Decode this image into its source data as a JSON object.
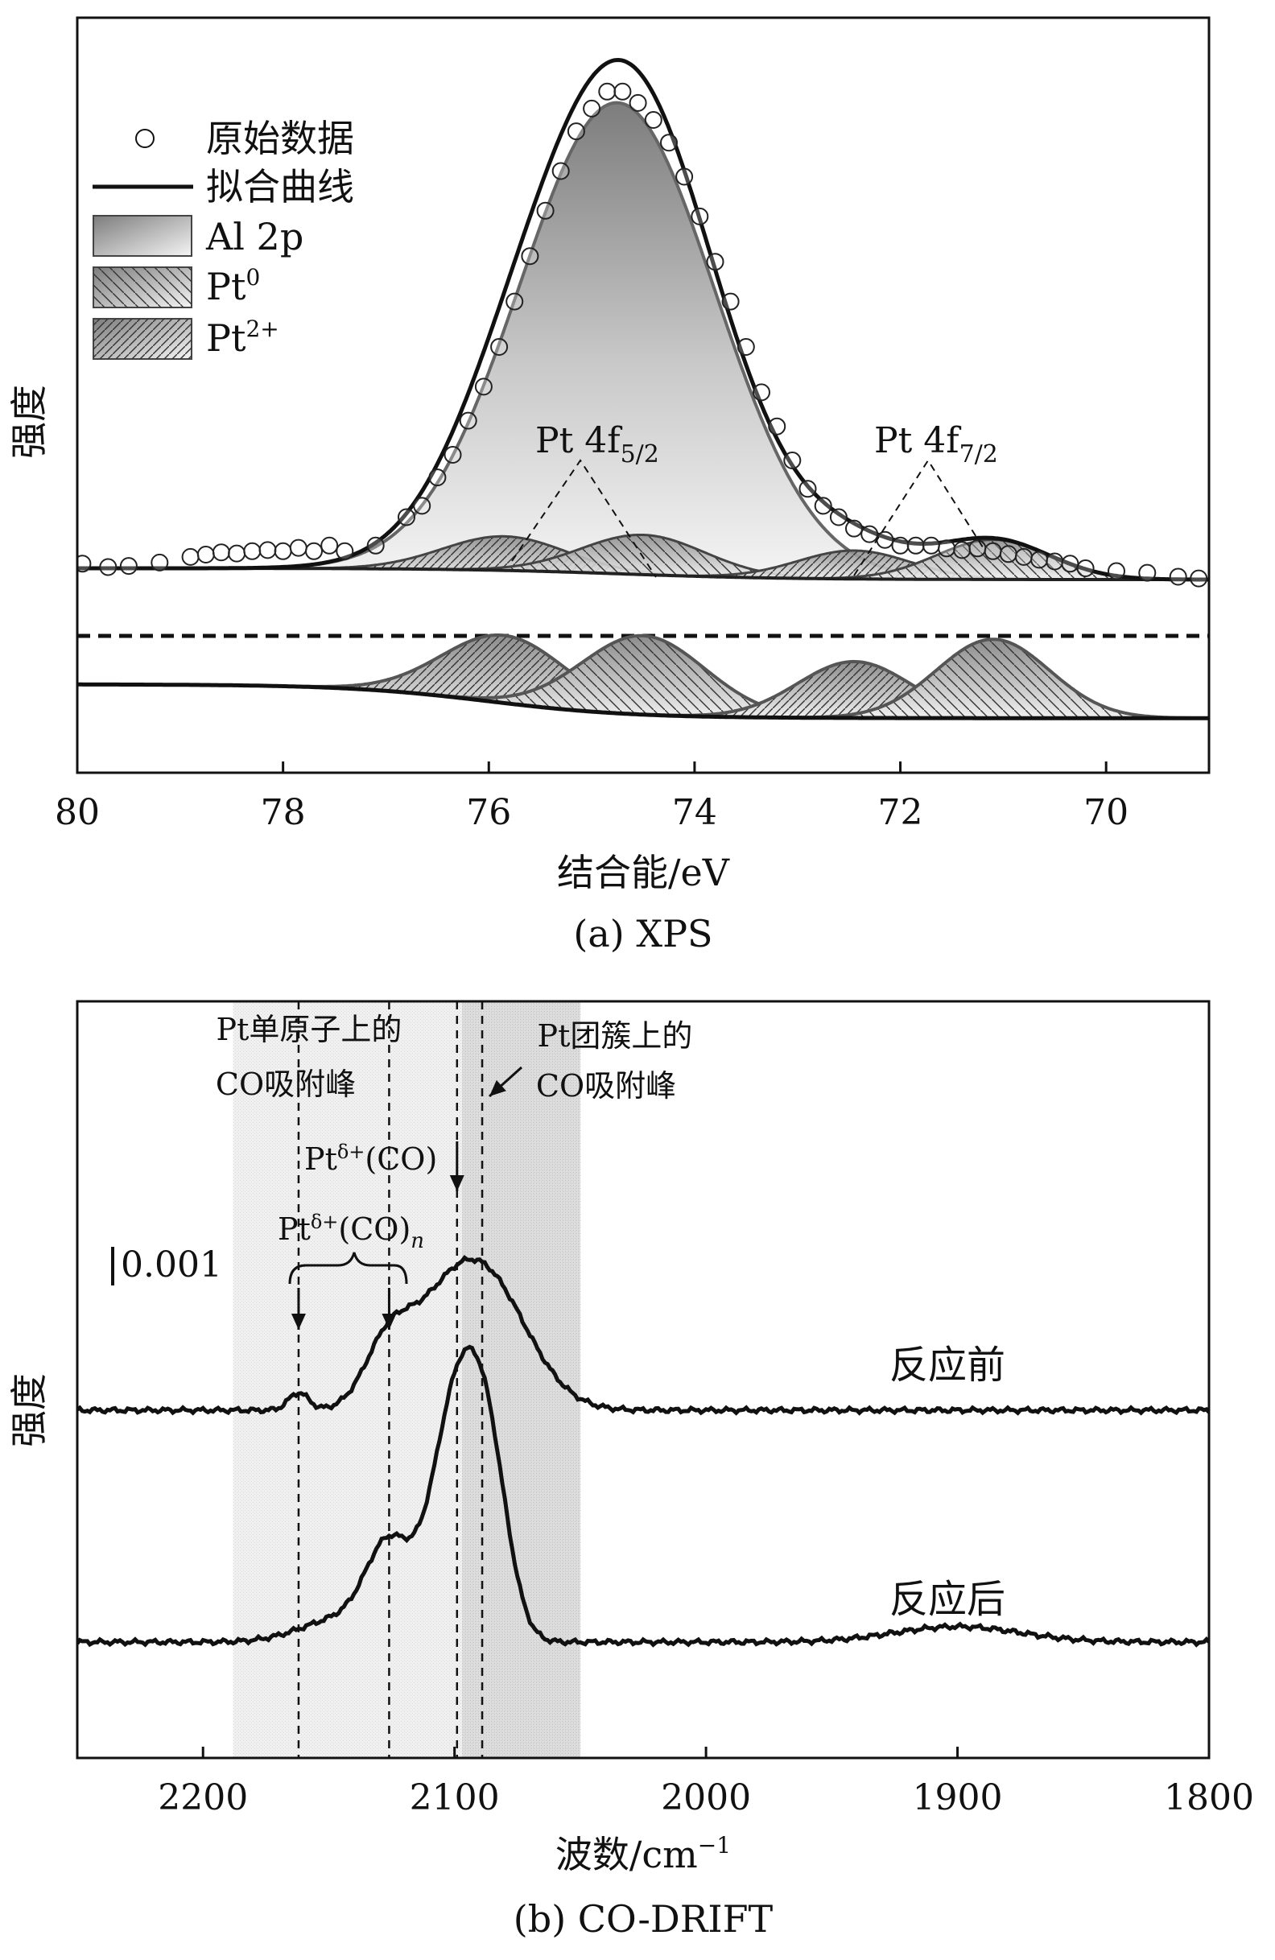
{
  "chart_data": [
    {
      "id": "a",
      "type": "line",
      "title": "(a) XPS",
      "xlabel": "结合能/eV",
      "ylabel": "强度",
      "xlim": [
        80,
        69
      ],
      "x_reversed": true,
      "xticks": [
        80,
        78,
        76,
        74,
        72,
        70
      ],
      "legend": {
        "placement": "top-left",
        "items": [
          {
            "key": "raw",
            "label": "原始数据",
            "marker": "open-circle"
          },
          {
            "key": "fit",
            "label": "拟合曲线",
            "marker": "line"
          },
          {
            "key": "al2p",
            "label": "Al 2p",
            "marker": "gradient-box"
          },
          {
            "key": "pt0",
            "label": "Pt",
            "sup": "0",
            "marker": "hatched-box"
          },
          {
            "key": "pt2",
            "label": "Pt",
            "sup": "2+",
            "marker": "hatched-box-dense"
          }
        ]
      },
      "annotations": [
        {
          "base": "Pt 4f",
          "sub": "5/2",
          "x_eV": 75.2
        },
        {
          "base": "Pt 4f",
          "sub": "7/2",
          "x_eV": 71.7
        }
      ],
      "components": {
        "al2p": {
          "center_eV": 74.75,
          "height": 0.83,
          "sigma_eV": 0.95
        },
        "pt0_5_2": {
          "center_eV": 74.5,
          "height": 0.07,
          "sigma_eV": 0.6
        },
        "pt0_7_2": {
          "center_eV": 71.1,
          "height": 0.07,
          "sigma_eV": 0.55
        },
        "pt2_5_2": {
          "center_eV": 75.85,
          "height": 0.06,
          "sigma_eV": 0.6
        },
        "pt2_7_2": {
          "center_eV": 72.45,
          "height": 0.05,
          "sigma_eV": 0.55
        },
        "baseline": {
          "left_value": 0.01,
          "right_value": -0.01,
          "step_center_eV": 74.7
        }
      },
      "raw_data_eV": [
        79.95,
        79.7,
        79.5,
        79.2,
        78.9,
        78.75,
        78.6,
        78.45,
        78.3,
        78.15,
        78.0,
        77.85,
        77.7,
        77.55,
        77.4,
        77.1,
        76.8,
        76.65,
        76.5,
        76.35,
        76.2,
        76.05,
        75.9,
        75.75,
        75.6,
        75.45,
        75.3,
        75.15,
        75.0,
        74.85,
        74.7,
        74.55,
        74.4,
        74.25,
        74.1,
        73.95,
        73.8,
        73.65,
        73.5,
        73.35,
        73.2,
        73.05,
        72.9,
        72.75,
        72.6,
        72.45,
        72.3,
        72.15,
        72.0,
        71.85,
        71.7,
        71.55,
        71.4,
        71.25,
        71.1,
        70.95,
        70.8,
        70.65,
        70.5,
        70.35,
        70.2,
        69.9,
        69.6,
        69.3,
        69.1
      ],
      "raw_data_intensity": [
        0.018,
        0.012,
        0.014,
        0.02,
        0.03,
        0.034,
        0.038,
        0.036,
        0.04,
        0.042,
        0.04,
        0.046,
        0.04,
        0.05,
        0.04,
        0.05,
        0.1,
        0.12,
        0.17,
        0.21,
        0.27,
        0.33,
        0.4,
        0.48,
        0.56,
        0.64,
        0.71,
        0.78,
        0.82,
        0.85,
        0.85,
        0.83,
        0.8,
        0.76,
        0.7,
        0.63,
        0.55,
        0.48,
        0.4,
        0.32,
        0.26,
        0.2,
        0.15,
        0.12,
        0.1,
        0.08,
        0.07,
        0.06,
        0.05,
        0.05,
        0.05,
        0.045,
        0.042,
        0.045,
        0.04,
        0.035,
        0.03,
        0.025,
        0.022,
        0.018,
        0.01,
        0.005,
        0.002,
        -0.005,
        -0.008
      ]
    },
    {
      "id": "b",
      "type": "line",
      "title": "(b) CO-DRIFT",
      "xlabel": "波数/cm",
      "xlabel_sup": "−1",
      "ylabel": "强度",
      "xlim": [
        2250,
        1800
      ],
      "x_reversed": true,
      "xticks": [
        2200,
        2100,
        2000,
        1900,
        1800
      ],
      "scale_bar": "0.001",
      "shaded_regions": [
        {
          "from": 2188,
          "to": 2097,
          "label": "Pt单原子上的CO吸附峰"
        },
        {
          "from": 2097,
          "to": 2050,
          "label": "Pt团簇上的CO吸附峰"
        }
      ],
      "vlines": [
        2162,
        2126,
        2099,
        2089
      ],
      "region_labels": [
        {
          "lines": [
            "Pt单原子上的",
            "CO吸附峰"
          ]
        },
        {
          "lines": [
            "Pt团簇上的",
            "CO吸附峰"
          ]
        }
      ],
      "peak_labels": [
        {
          "base": "Pt",
          "sup": "δ+",
          "suffix": "(CO)",
          "points_to": [
            2099
          ]
        },
        {
          "base": "Pt",
          "sup": "δ+",
          "suffix": "(CO)",
          "italic_sub": "n",
          "points_to": [
            2162,
            2126
          ]
        }
      ],
      "series": [
        {
          "name": "反应前",
          "baseline": 0,
          "peaks": [
            {
              "center": 2162,
              "height": 0.00045,
              "width": 4
            },
            {
              "center": 2127,
              "height": 0.0013,
              "width": 9
            },
            {
              "center": 2090,
              "height": 0.0036,
              "width": 18
            },
            {
              "center": 2112,
              "height": 0.0009,
              "width": 14
            }
          ]
        },
        {
          "name": "反应后",
          "baseline": 0,
          "peaks": [
            {
              "center": 2126,
              "height": 0.0023,
              "width": 9
            },
            {
              "center": 2099,
              "height": 0.0062,
              "width": 10
            },
            {
              "center": 2086,
              "height": 0.0035,
              "width": 8
            },
            {
              "center": 2145,
              "height": 0.0006,
              "width": 16
            },
            {
              "center": 1900,
              "height": 0.0004,
              "width": 25
            }
          ]
        }
      ]
    }
  ]
}
